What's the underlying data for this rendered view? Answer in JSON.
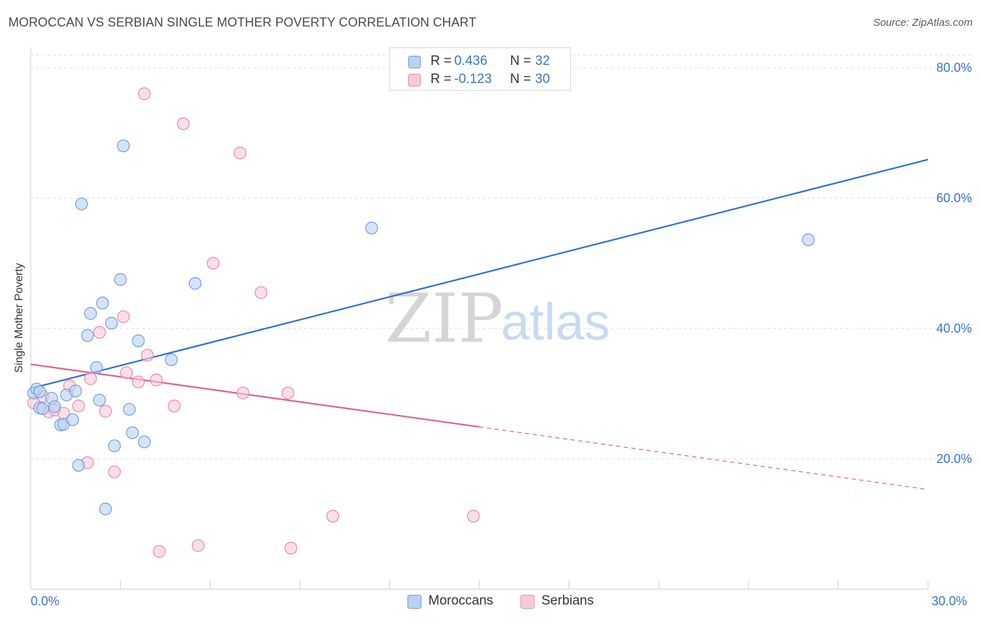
{
  "title": "MOROCCAN VS SERBIAN SINGLE MOTHER POVERTY CORRELATION CHART",
  "source": "Source: ZipAtlas.com",
  "colors": {
    "blue_fill": "#b9d1f3",
    "blue_stroke": "#6f9ee0",
    "blue_line": "#2e6fd0",
    "pink_fill": "#f9c9d8",
    "pink_stroke": "#ea8aa8",
    "pink_line": "#e0608c",
    "grid": "#dcdcdc",
    "axis_text": "#3a74c9"
  },
  "legend_top": {
    "rows": [
      {
        "label": "R =",
        "r_value": "0.436",
        "n_label": "N =",
        "n_value": "32"
      },
      {
        "label": "R =",
        "r_value": "-0.123",
        "n_label": "N =",
        "n_value": "30"
      }
    ]
  },
  "legend_bottom": {
    "moroccans": "Moroccans",
    "serbians": "Serbians"
  },
  "watermark": {
    "zip": "ZIP",
    "atlas": "atlas"
  },
  "chart_data": {
    "type": "scatter",
    "title": "MOROCCAN VS SERBIAN SINGLE MOTHER POVERTY CORRELATION CHART",
    "xlabel": "",
    "ylabel": "Single Mother Poverty",
    "xlim": [
      0,
      30
    ],
    "ylim": [
      0,
      85
    ],
    "x_tick_labels": [
      "0.0%",
      "30.0%"
    ],
    "y_ticks": [
      20,
      40,
      60,
      80
    ],
    "y_tick_labels": [
      "20.0%",
      "40.0%",
      "60.0%",
      "80.0%"
    ],
    "grid": true,
    "series": [
      {
        "name": "Moroccans",
        "color": "#6f9ee0",
        "points": [
          [
            0.1,
            30.1
          ],
          [
            0.2,
            30.7
          ],
          [
            0.3,
            27.8
          ],
          [
            0.4,
            27.7
          ],
          [
            0.7,
            29.3
          ],
          [
            0.8,
            28.0
          ],
          [
            1.0,
            25.2
          ],
          [
            1.1,
            25.3
          ],
          [
            1.2,
            29.8
          ],
          [
            1.4,
            26.0
          ],
          [
            1.5,
            30.4
          ],
          [
            1.6,
            19.0
          ],
          [
            1.7,
            59.1
          ],
          [
            1.9,
            38.9
          ],
          [
            2.0,
            42.3
          ],
          [
            2.2,
            34.0
          ],
          [
            2.3,
            29.0
          ],
          [
            2.4,
            43.9
          ],
          [
            2.5,
            12.3
          ],
          [
            2.7,
            40.8
          ],
          [
            2.8,
            22.0
          ],
          [
            3.0,
            47.5
          ],
          [
            3.1,
            68.0
          ],
          [
            3.3,
            27.6
          ],
          [
            3.4,
            24.0
          ],
          [
            3.6,
            38.1
          ],
          [
            3.8,
            22.6
          ],
          [
            4.7,
            35.2
          ],
          [
            5.5,
            46.9
          ],
          [
            11.4,
            55.4
          ],
          [
            26.0,
            53.6
          ],
          [
            0.3,
            30.3
          ]
        ],
        "trend": {
          "x0": 0,
          "y0": 30.8,
          "x1": 30,
          "y1": 65.9
        }
      },
      {
        "name": "Serbians",
        "color": "#ea8aa8",
        "points": [
          [
            0.1,
            28.6
          ],
          [
            0.4,
            29.6
          ],
          [
            0.6,
            27.2
          ],
          [
            0.8,
            27.5
          ],
          [
            1.1,
            27.0
          ],
          [
            1.3,
            31.2
          ],
          [
            1.6,
            28.1
          ],
          [
            1.9,
            19.4
          ],
          [
            2.0,
            32.3
          ],
          [
            2.3,
            39.4
          ],
          [
            2.5,
            27.3
          ],
          [
            2.8,
            18.0
          ],
          [
            3.1,
            41.8
          ],
          [
            3.2,
            33.2
          ],
          [
            3.6,
            31.8
          ],
          [
            3.9,
            35.9
          ],
          [
            4.2,
            32.1
          ],
          [
            4.3,
            5.8
          ],
          [
            4.8,
            28.1
          ],
          [
            5.6,
            6.7
          ],
          [
            6.1,
            50.0
          ],
          [
            7.0,
            66.9
          ],
          [
            7.1,
            30.1
          ],
          [
            7.7,
            45.5
          ],
          [
            8.6,
            30.1
          ],
          [
            8.7,
            6.3
          ],
          [
            10.1,
            11.2
          ],
          [
            14.8,
            11.2
          ],
          [
            3.8,
            76.0
          ],
          [
            5.1,
            71.4
          ]
        ],
        "trend": {
          "x0": 0,
          "y0": 34.5,
          "x1": 15,
          "y1": 24.9
        },
        "trend_extension": {
          "x0": 15,
          "y0": 24.9,
          "x1": 30,
          "y1": 15.3
        }
      }
    ]
  }
}
